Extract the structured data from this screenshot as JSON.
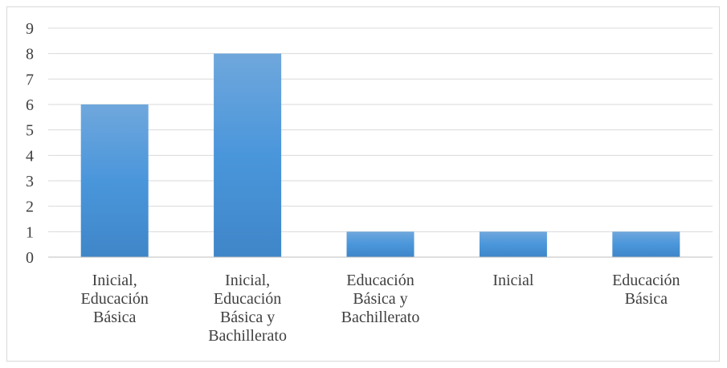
{
  "chart_data": {
    "type": "bar",
    "categories": [
      [
        "Inicial,",
        "Educación",
        "Básica"
      ],
      [
        "Inicial,",
        "Educación",
        "Básica y",
        "Bachillerato"
      ],
      [
        "Educación",
        "Básica y",
        "Bachillerato"
      ],
      [
        "Inicial"
      ],
      [
        "Educación",
        "Básica"
      ]
    ],
    "values": [
      6,
      8,
      1,
      1,
      1
    ],
    "title": "",
    "xlabel": "",
    "ylabel": "",
    "ylim": [
      0,
      9
    ],
    "yticks": [
      "0",
      "1",
      "2",
      "3",
      "4",
      "5",
      "6",
      "7",
      "8",
      "9"
    ],
    "grid": true,
    "legend": "none",
    "colors": {
      "bar_top": "#6fa7dc",
      "bar_bottom": "#3f86c8",
      "grid": "#d9d9d9",
      "axis": "#bfbfbf",
      "text": "#404040"
    }
  }
}
